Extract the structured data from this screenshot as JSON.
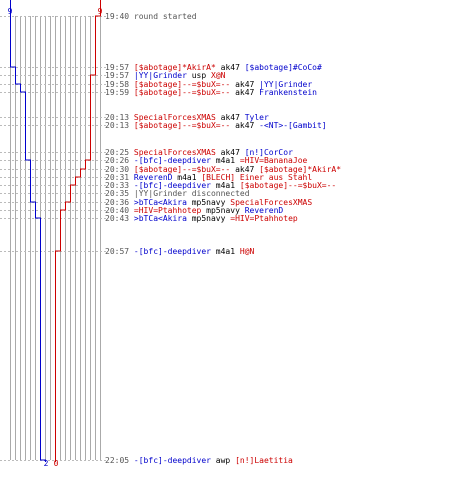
{
  "score": {
    "left_start": "9",
    "right_start": "9",
    "left_end": "2",
    "right_end": "0",
    "left_color": "#0000cc",
    "right_color": "#cc0000"
  },
  "events": [
    {
      "time": "19:40",
      "parts": [
        {
          "t": "round started",
          "c": "gray"
        }
      ]
    },
    {
      "time": "19:57",
      "parts": [
        {
          "t": "[$abotage]*AkirA*",
          "c": "red"
        },
        {
          "t": " ak47 ",
          "c": "plain"
        },
        {
          "t": "[$abotage]#CoCo#",
          "c": "blue"
        }
      ]
    },
    {
      "time": "19:57",
      "parts": [
        {
          "t": "|YY|Grinder",
          "c": "blue"
        },
        {
          "t": " usp ",
          "c": "plain"
        },
        {
          "t": "X@N",
          "c": "red"
        }
      ]
    },
    {
      "time": "19:58",
      "parts": [
        {
          "t": "[$abotage]--=$buX=--",
          "c": "red"
        },
        {
          "t": " ak47 ",
          "c": "plain"
        },
        {
          "t": "|YY|Grinder",
          "c": "blue"
        }
      ]
    },
    {
      "time": "19:59",
      "parts": [
        {
          "t": "[$abotage]--=$buX=--",
          "c": "red"
        },
        {
          "t": " ak47 ",
          "c": "plain"
        },
        {
          "t": "Frankenstein",
          "c": "blue"
        }
      ]
    },
    {
      "time": "20:13",
      "parts": [
        {
          "t": "SpecialForcesXMAS",
          "c": "red"
        },
        {
          "t": " ak47 ",
          "c": "plain"
        },
        {
          "t": "Tyler",
          "c": "blue"
        }
      ]
    },
    {
      "time": "20:13",
      "parts": [
        {
          "t": "[$abotage]--=$buX=--",
          "c": "red"
        },
        {
          "t": " ak47 ",
          "c": "plain"
        },
        {
          "t": "-<NT>-[Gambit]",
          "c": "blue"
        }
      ]
    },
    {
      "time": "20:25",
      "parts": [
        {
          "t": "SpecialForcesXMAS",
          "c": "red"
        },
        {
          "t": " ak47 ",
          "c": "plain"
        },
        {
          "t": "[n!]CorCor",
          "c": "blue"
        }
      ]
    },
    {
      "time": "20:26",
      "parts": [
        {
          "t": "-[bfc]-deepdiver",
          "c": "blue"
        },
        {
          "t": " m4a1 ",
          "c": "plain"
        },
        {
          "t": "=HIV=BananaJoe",
          "c": "red"
        }
      ]
    },
    {
      "time": "20:30",
      "parts": [
        {
          "t": "[$abotage]--=$buX=--",
          "c": "red"
        },
        {
          "t": " ak47 ",
          "c": "plain"
        },
        {
          "t": "[$abotage]*AkirA*",
          "c": "red"
        }
      ]
    },
    {
      "time": "20:31",
      "parts": [
        {
          "t": "ReverenD",
          "c": "blue"
        },
        {
          "t": " m4a1 ",
          "c": "plain"
        },
        {
          "t": "[BLECH] Einer aus Stahl",
          "c": "red"
        }
      ]
    },
    {
      "time": "20:33",
      "parts": [
        {
          "t": "-[bfc]-deepdiver",
          "c": "blue"
        },
        {
          "t": " m4a1 ",
          "c": "plain"
        },
        {
          "t": "[$abotage]--=$buX=--",
          "c": "red"
        }
      ]
    },
    {
      "time": "20:35",
      "parts": [
        {
          "t": "|YY|Grinder disconnected",
          "c": "gray"
        }
      ]
    },
    {
      "time": "20:36",
      "parts": [
        {
          "t": ">bTCa<Akira",
          "c": "blue"
        },
        {
          "t": " mp5navy ",
          "c": "plain"
        },
        {
          "t": "SpecialForcesXMAS",
          "c": "red"
        }
      ]
    },
    {
      "time": "20:40",
      "parts": [
        {
          "t": "=HIV=Ptahhotep",
          "c": "red"
        },
        {
          "t": " mp5navy ",
          "c": "plain"
        },
        {
          "t": "ReverenD",
          "c": "blue"
        }
      ]
    },
    {
      "time": "20:43",
      "parts": [
        {
          "t": ">bTCa<Akira",
          "c": "blue"
        },
        {
          "t": " mp5navy ",
          "c": "plain"
        },
        {
          "t": "=HIV=Ptahhotep",
          "c": "red"
        }
      ]
    },
    {
      "time": "20:57",
      "parts": [
        {
          "t": "-[bfc]-deepdiver",
          "c": "blue"
        },
        {
          "t": " m4a1 ",
          "c": "plain"
        },
        {
          "t": "H@N",
          "c": "red"
        }
      ]
    },
    {
      "time": "22:05",
      "parts": [
        {
          "t": "-[bfc]-deepdiver",
          "c": "blue"
        },
        {
          "t": " awp ",
          "c": "plain"
        },
        {
          "t": "[n!]Laetitia",
          "c": "red"
        }
      ]
    }
  ],
  "blue_alive": [
    9,
    9,
    8,
    8,
    7,
    6,
    6,
    6,
    6,
    5,
    5,
    5,
    5,
    5,
    4,
    4,
    3,
    3,
    2
  ],
  "red_alive": [
    9,
    8,
    8,
    7,
    7,
    7,
    7,
    7,
    7,
    6,
    5,
    4,
    3,
    3,
    2,
    1,
    1,
    0,
    0
  ]
}
